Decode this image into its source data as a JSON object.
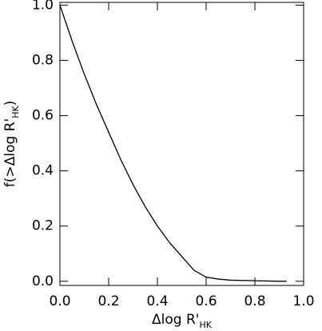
{
  "chart_data": {
    "type": "line",
    "xlabel_parts": [
      "Δlog R'",
      "HK"
    ],
    "ylabel_parts": [
      "f(>Δlog R'",
      "HK",
      ")"
    ],
    "x": [
      0,
      0.05,
      0.1,
      0.15,
      0.2,
      0.25,
      0.3,
      0.35,
      0.4,
      0.45,
      0.5,
      0.55,
      0.6,
      0.65,
      0.7,
      0.8,
      0.9,
      0.93
    ],
    "series": [
      {
        "color": "#000000",
        "values": [
          1.0,
          0.87,
          0.75,
          0.64,
          0.54,
          0.44,
          0.35,
          0.27,
          0.2,
          0.14,
          0.09,
          0.04,
          0.015,
          0.008,
          0.004,
          0.002,
          0.0,
          0.0
        ]
      }
    ],
    "xlim": [
      0,
      1.0
    ],
    "ylim": [
      -0.015,
      1.01
    ],
    "xticks": [
      {
        "value": 0,
        "label": "0.0"
      },
      0.2,
      0.4,
      0.6,
      0.8,
      {
        "value": 1,
        "label": "1.0"
      }
    ],
    "yticks": [
      {
        "value": 0,
        "label": "0.0"
      },
      0.2,
      0.4,
      0.6,
      0.8,
      {
        "value": 1,
        "label": "1.0"
      }
    ],
    "grid": false
  }
}
